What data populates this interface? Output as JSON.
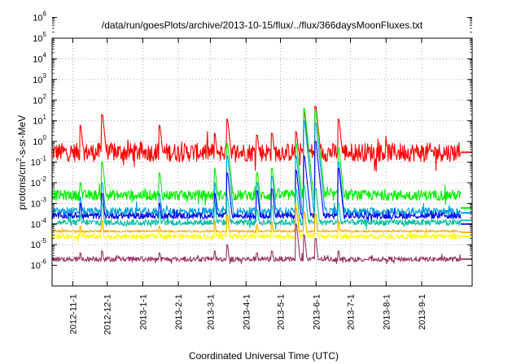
{
  "chart_data": {
    "type": "line",
    "title": "/data/run/goesPlots/archive/2013-10-15/flux/../flux/366daysMoonFluxes.txt",
    "xlabel": "Coordinated Universal Time (UTC)",
    "ylabel": "protons/cm2-s-sr-MeV",
    "ylabel_parts": {
      "pre": "protons/cm",
      "sup": "2",
      "post": "-s-sr-MeV"
    },
    "y_scale": "log",
    "ylim": [
      "1e-6",
      "1e6"
    ],
    "y_tick_labels": [
      {
        "base": "10",
        "exp": "-6"
      },
      {
        "base": "10",
        "exp": "-5"
      },
      {
        "base": "10",
        "exp": "-4"
      },
      {
        "base": "10",
        "exp": "-3"
      },
      {
        "base": "10",
        "exp": "-2"
      },
      {
        "base": "10",
        "exp": "-1"
      },
      {
        "base": "10",
        "exp": "0"
      },
      {
        "base": "10",
        "exp": "1"
      },
      {
        "base": "10",
        "exp": "2"
      },
      {
        "base": "10",
        "exp": "3"
      },
      {
        "base": "10",
        "exp": "4"
      },
      {
        "base": "10",
        "exp": "5"
      },
      {
        "base": "10",
        "exp": "6"
      }
    ],
    "xlim": [
      "2012-10-14",
      "2013-10-15"
    ],
    "x_tick_labels": [
      "2012-11-1",
      "2012-12-1",
      "2013-1-1",
      "2013-2-1",
      "2013-3-1",
      "2013-4-1",
      "2013-5-1",
      "2013-6-1",
      "2013-7-1",
      "2013-8-1",
      "2013-9-1"
    ],
    "grid": true,
    "legend": "none",
    "events": [
      "2012-11-08",
      "2012-11-27",
      "2013-01-16",
      "2013-03-05",
      "2013-03-16",
      "2013-04-11",
      "2013-04-24",
      "2013-05-15",
      "2013-05-22",
      "2013-06-01",
      "2013-06-21"
    ],
    "series": [
      {
        "color": "#ff0000",
        "baseline": 3.0,
        "noise_decades": 0.45,
        "peaks": [
          60,
          200,
          60,
          25,
          120,
          20,
          25,
          30,
          250,
          500,
          120
        ],
        "end_value": 3.0
      },
      {
        "color": "#00ee00",
        "baseline": 0.025,
        "noise_decades": 0.25,
        "peaks": [
          0.1,
          1.0,
          0.3,
          0.5,
          8,
          0.3,
          0.5,
          8,
          400,
          300,
          5
        ],
        "end_value": 0.006
      },
      {
        "color": "#009ee0",
        "baseline": 0.004,
        "noise_decades": 0.2,
        "peaks": [
          0.02,
          0.1,
          0.03,
          0.1,
          2,
          0.1,
          0.2,
          2,
          100,
          80,
          1
        ],
        "end_value": 0.0035
      },
      {
        "color": "#0000ee",
        "baseline": 0.0025,
        "noise_decades": 0.15,
        "peaks": [
          0.01,
          0.03,
          0.01,
          0.03,
          0.3,
          0.04,
          0.05,
          0.4,
          2,
          10,
          0.5
        ],
        "end_value": 0.001
      },
      {
        "color": "#00c0a0",
        "baseline": 0.0012,
        "noise_decades": 0.15,
        "peaks": [
          0.003,
          0.01,
          0.004,
          0.01,
          0.02,
          0.005,
          0.008,
          0.05,
          0.08,
          0.05,
          0.01
        ],
        "end_value": 0.0015
      },
      {
        "color": "#ffff00",
        "baseline": 0.00025,
        "noise_decades": 0.12,
        "peaks": [
          0.0005,
          0.001,
          0.0005,
          0.001,
          0.002,
          0.0006,
          0.0008,
          0.01,
          0.004,
          0.003,
          0.001
        ],
        "end_value": 0.00025
      },
      {
        "color": "#ffaa00",
        "baseline": 0.00045,
        "noise_decades": 0.05,
        "peaks": [
          0.0008,
          0.0015,
          0.0008,
          0.0015,
          0.003,
          0.0009,
          0.0012,
          0.006,
          0.004,
          0.003,
          0.0015
        ],
        "end_value": 0.0004
      },
      {
        "color": "#993366",
        "baseline": 2e-05,
        "noise_decades": 0.12,
        "peaks": [
          4e-05,
          5e-05,
          4e-05,
          5e-05,
          0.0001,
          4e-05,
          5e-05,
          0.001,
          0.0003,
          0.0002,
          5e-05
        ],
        "end_value": 2e-05
      }
    ]
  }
}
